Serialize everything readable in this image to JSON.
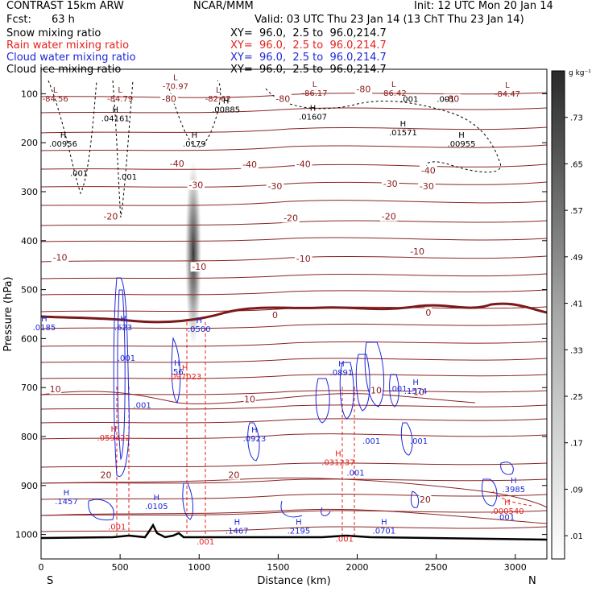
{
  "header": {
    "title": "CONTRAST 15km ARW",
    "center": "NCAR/MMM",
    "init": "Init: 12 UTC Mon 20 Jan 14",
    "fcst_label": "Fcst:",
    "fcst_value": "63 h",
    "valid": "Valid: 03 UTC Thu 23 Jan 14 (13 ChT Thu 23 Jan 14)"
  },
  "fields": [
    {
      "name": "Snow mixing ratio",
      "xy": "XY=  96.0,  2.5 to  96.0,214.7",
      "color": "#000000"
    },
    {
      "name": "Rain water mixing ratio",
      "xy": "XY=  96.0,  2.5 to  96.0,214.7",
      "color": "#e8201c"
    },
    {
      "name": "Cloud water mixing ratio",
      "xy": "XY=  96.0,  2.5 to  96.0,214.7",
      "color": "#1c28d8"
    },
    {
      "name": "Cloud ice mixing ratio",
      "xy": "XY=  96.0,  2.5 to  96.0,214.7",
      "color": "#000000"
    }
  ],
  "chart_data": {
    "type": "cross-section contour",
    "xlabel": "Distance (km)",
    "ylabel": "Pressure (hPa)",
    "xlim": [
      0,
      3200
    ],
    "ylim": [
      1050,
      50
    ],
    "x_ticks": [
      "0",
      "500",
      "1000",
      "1500",
      "2000",
      "2500",
      "3000"
    ],
    "y_ticks": [
      "100",
      "200",
      "300",
      "400",
      "500",
      "600",
      "700",
      "800",
      "900",
      "1000"
    ],
    "endpoint_left": "S",
    "endpoint_right": "N",
    "colorbar": {
      "unit": "g kg⁻¹",
      "ticks": [
        ".01",
        ".09",
        ".17",
        ".25",
        ".33",
        ".41",
        ".49",
        ".57",
        ".65",
        ".73"
      ]
    },
    "temperature_contour_labels": [
      {
        "text": "-80",
        "x": 810,
        "p": 112
      },
      {
        "text": "-80",
        "x": 1530,
        "p": 112
      },
      {
        "text": "-80",
        "x": 2040,
        "p": 92
      },
      {
        "text": "-80",
        "x": 2600,
        "p": 112
      },
      {
        "text": "-40",
        "x": 860,
        "p": 244
      },
      {
        "text": "-40",
        "x": 1320,
        "p": 246
      },
      {
        "text": "-40",
        "x": 2450,
        "p": 258
      },
      {
        "text": "-40",
        "x": 1660,
        "p": 245
      },
      {
        "text": "-30",
        "x": 980,
        "p": 288
      },
      {
        "text": "-30",
        "x": 1480,
        "p": 290
      },
      {
        "text": "-30",
        "x": 2210,
        "p": 285
      },
      {
        "text": "-30",
        "x": 2440,
        "p": 290
      },
      {
        "text": "-20",
        "x": 440,
        "p": 352
      },
      {
        "text": "-20",
        "x": 1580,
        "p": 355
      },
      {
        "text": "-20",
        "x": 2200,
        "p": 352
      },
      {
        "text": "-10",
        "x": 120,
        "p": 436
      },
      {
        "text": "-10",
        "x": 1000,
        "p": 455
      },
      {
        "text": "-10",
        "x": 1660,
        "p": 438
      },
      {
        "text": "-10",
        "x": 2380,
        "p": 423
      },
      {
        "text": "0",
        "x": 1480,
        "p": 553
      },
      {
        "text": "0",
        "x": 2450,
        "p": 548
      },
      {
        "text": "10",
        "x": 90,
        "p": 705
      },
      {
        "text": "10",
        "x": 1320,
        "p": 725
      },
      {
        "text": "10",
        "x": 2120,
        "p": 707
      },
      {
        "text": "10",
        "x": 2390,
        "p": 710
      },
      {
        "text": "20",
        "x": 410,
        "p": 880
      },
      {
        "text": "20",
        "x": 1220,
        "p": 880
      },
      {
        "text": "20",
        "x": 2430,
        "p": 930
      }
    ],
    "high_low_labels": [
      {
        "letter": "L",
        "value": "-84.56",
        "x": 90,
        "p": 98,
        "color": "#8b1a1a"
      },
      {
        "letter": "L",
        "value": "-84.79",
        "x": 500,
        "p": 98,
        "color": "#8b1a1a"
      },
      {
        "letter": "L",
        "value": "-70.97",
        "x": 850,
        "p": 72,
        "color": "#8b1a1a"
      },
      {
        "letter": "L",
        "value": "-82.62",
        "x": 1120,
        "p": 98,
        "color": "#8b1a1a"
      },
      {
        "letter": "L",
        "value": "-86.17",
        "x": 1730,
        "p": 86,
        "color": "#8b1a1a"
      },
      {
        "letter": "L",
        "value": "-86.42",
        "x": 2230,
        "p": 86,
        "color": "#8b1a1a"
      },
      {
        "letter": "L",
        "value": "-84.47",
        "x": 2950,
        "p": 88,
        "color": "#8b1a1a"
      },
      {
        "letter": "H",
        "value": ".00885",
        "x": 1170,
        "p": 120,
        "color": "#000000"
      },
      {
        "letter": "H",
        "value": ".04161",
        "x": 470,
        "p": 138,
        "color": "#000000"
      },
      {
        "letter": "H",
        "value": ".01607",
        "x": 1720,
        "p": 135,
        "color": "#000000"
      },
      {
        "letter": "H",
        "value": ".01571",
        "x": 2290,
        "p": 167,
        "color": "#000000"
      },
      {
        "letter": "H",
        "value": ".00956",
        "x": 140,
        "p": 190,
        "color": "#000000"
      },
      {
        "letter": "H",
        "value": ".0179",
        "x": 970,
        "p": 190,
        "color": "#000000"
      },
      {
        "letter": "H",
        "value": ".00955",
        "x": 2660,
        "p": 190,
        "color": "#000000"
      },
      {
        "letter": "H",
        "value": ".0185",
        "x": 20,
        "p": 565,
        "color": "#1c28d8"
      },
      {
        "letter": "H",
        "value": ".623",
        "x": 520,
        "p": 565,
        "color": "#1c28d8"
      },
      {
        "letter": "H",
        "value": ".0500",
        "x": 1000,
        "p": 568,
        "color": "#1c28d8"
      },
      {
        "letter": "H",
        "value": ".56",
        "x": 860,
        "p": 655,
        "color": "#1c28d8"
      },
      {
        "letter": "H",
        "value": ".0891",
        "x": 1900,
        "p": 657,
        "color": "#1c28d8"
      },
      {
        "letter": "H",
        "value": ".1574",
        "x": 2370,
        "p": 695,
        "color": "#1c28d8"
      },
      {
        "letter": "H",
        "value": ".0923",
        "x": 1350,
        "p": 792,
        "color": "#1c28d8"
      },
      {
        "letter": "H",
        "value": ".1457",
        "x": 160,
        "p": 920,
        "color": "#1c28d8"
      },
      {
        "letter": "H",
        "value": ".0105",
        "x": 730,
        "p": 930,
        "color": "#1c28d8"
      },
      {
        "letter": "H",
        "value": ".1467",
        "x": 1240,
        "p": 980,
        "color": "#1c28d8"
      },
      {
        "letter": "H",
        "value": ".2195",
        "x": 1630,
        "p": 980,
        "color": "#1c28d8"
      },
      {
        "letter": "H",
        "value": ".0701",
        "x": 2170,
        "p": 980,
        "color": "#1c28d8"
      },
      {
        "letter": "H",
        "value": ".3985",
        "x": 2990,
        "p": 895,
        "color": "#1c28d8"
      },
      {
        "letter": "H",
        "value": ".097023",
        "x": 910,
        "p": 665,
        "color": "#e8201c"
      },
      {
        "letter": "H",
        "value": ".059422",
        "x": 460,
        "p": 790,
        "color": "#e8201c"
      },
      {
        "letter": "H",
        "value": ".031237",
        "x": 1880,
        "p": 840,
        "color": "#e8201c"
      },
      {
        "letter": "H",
        "value": ".000540",
        "x": 2950,
        "p": 940,
        "color": "#e8201c"
      }
    ],
    "value_labels": [
      {
        "text": ".001",
        "x": 240,
        "p": 268,
        "color": "#000000"
      },
      {
        "text": ".001",
        "x": 550,
        "p": 275,
        "color": "#000000"
      },
      {
        "text": ".001",
        "x": 2330,
        "p": 117,
        "color": "#000000"
      },
      {
        "text": ".001",
        "x": 2560,
        "p": 117,
        "color": "#000000"
      },
      {
        "text": ".001",
        "x": 540,
        "p": 645,
        "color": "#1c28d8"
      },
      {
        "text": ".001",
        "x": 640,
        "p": 742,
        "color": "#1c28d8"
      },
      {
        "text": ".001",
        "x": 2260,
        "p": 708,
        "color": "#1c28d8"
      },
      {
        "text": ".001",
        "x": 2090,
        "p": 815,
        "color": "#1c28d8"
      },
      {
        "text": ".001",
        "x": 2390,
        "p": 815,
        "color": "#1c28d8"
      },
      {
        "text": ".001",
        "x": 1990,
        "p": 880,
        "color": "#1c28d8"
      },
      {
        "text": ".001",
        "x": 2940,
        "p": 970,
        "color": "#1c28d8"
      },
      {
        "text": ".001",
        "x": 480,
        "p": 990,
        "color": "#e8201c"
      },
      {
        "text": ".001",
        "x": 1040,
        "p": 1020,
        "color": "#e8201c"
      },
      {
        "text": ".001",
        "x": 1920,
        "p": 1015,
        "color": "#e8201c"
      }
    ]
  }
}
